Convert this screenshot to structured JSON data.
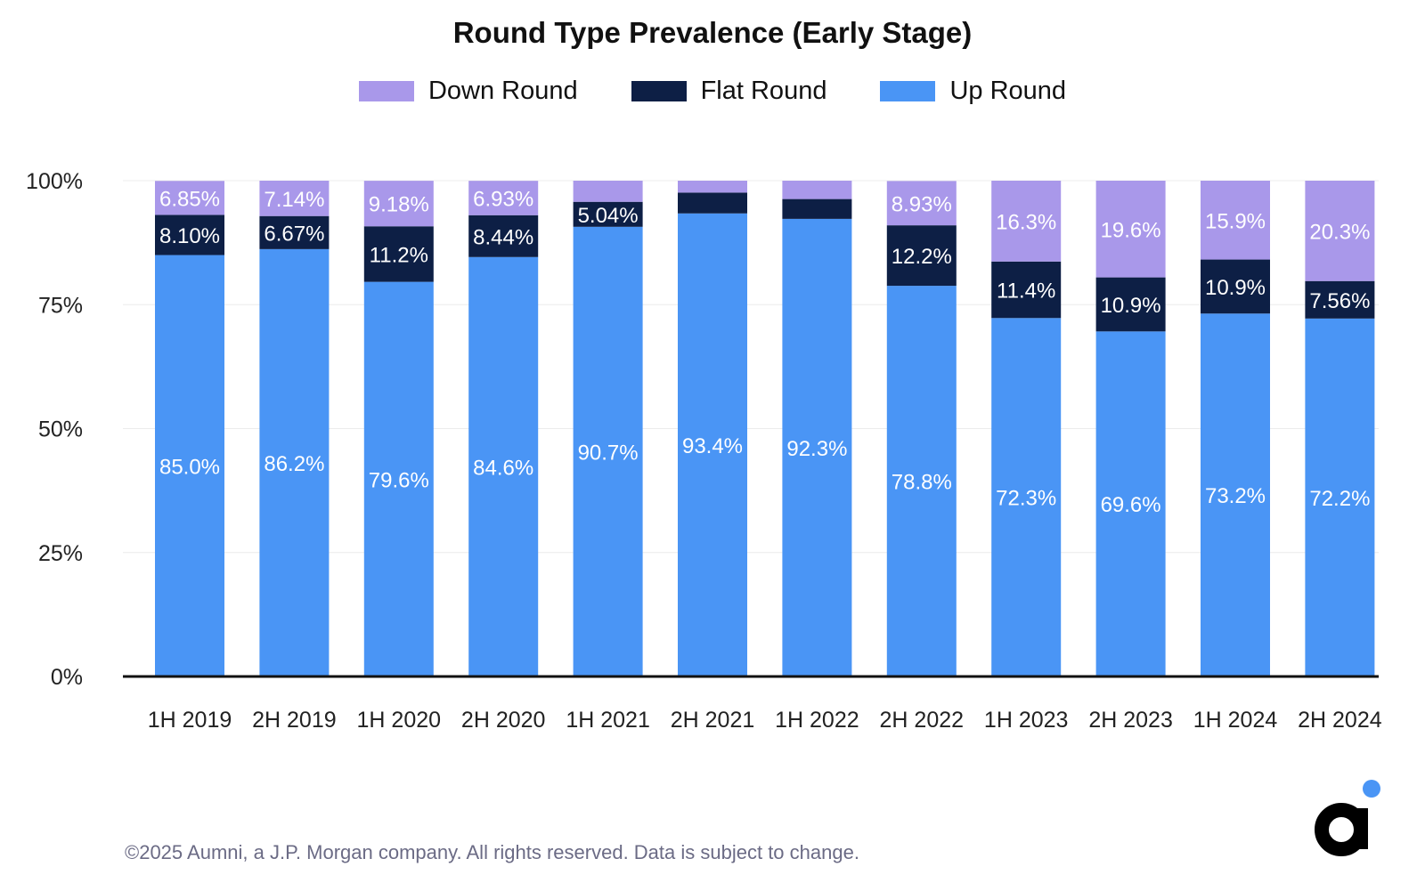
{
  "chart_data": {
    "type": "bar",
    "stacked": true,
    "title": "Round Type Prevalence (Early Stage)",
    "categories": [
      "1H 2019",
      "2H 2019",
      "1H 2020",
      "2H 2020",
      "1H 2021",
      "2H 2021",
      "1H 2022",
      "2H 2022",
      "1H 2023",
      "2H 2023",
      "1H 2024",
      "2H 2024"
    ],
    "series": [
      {
        "name": "Up Round",
        "color": "#4a95f5",
        "values": [
          85.0,
          86.2,
          79.6,
          84.6,
          90.7,
          93.4,
          92.3,
          78.8,
          72.3,
          69.6,
          73.2,
          72.2
        ],
        "labels": [
          "85.0%",
          "86.2%",
          "79.6%",
          "84.6%",
          "90.7%",
          "93.4%",
          "92.3%",
          "78.8%",
          "72.3%",
          "69.6%",
          "73.2%",
          "72.2%"
        ]
      },
      {
        "name": "Flat Round",
        "color": "#0d1f45",
        "values": [
          8.1,
          6.67,
          11.2,
          8.44,
          5.04,
          4.2,
          4.0,
          12.2,
          11.4,
          10.9,
          10.9,
          7.56
        ],
        "labels": [
          "8.10%",
          "6.67%",
          "11.2%",
          "8.44%",
          "5.04%",
          "",
          "",
          "12.2%",
          "11.4%",
          "10.9%",
          "10.9%",
          "7.56%"
        ]
      },
      {
        "name": "Down Round",
        "color": "#a998ea",
        "values": [
          6.85,
          7.14,
          9.18,
          6.93,
          4.26,
          2.4,
          3.7,
          8.93,
          16.3,
          19.6,
          15.9,
          20.3
        ],
        "labels": [
          "6.85%",
          "7.14%",
          "9.18%",
          "6.93%",
          "",
          "",
          "",
          "8.93%",
          "16.3%",
          "19.6%",
          "15.9%",
          "20.3%"
        ]
      }
    ],
    "legend_order": [
      "Down Round",
      "Flat Round",
      "Up Round"
    ],
    "legend": "top-center",
    "yticks": [
      "0%",
      "25%",
      "50%",
      "75%",
      "100%"
    ],
    "ylim": [
      0,
      100
    ],
    "grid": true
  },
  "footer": "©2025 Aumni, a J.P. Morgan company. All rights reserved. Data is subject to change.",
  "logo_icon": "aumni-logo-icon"
}
